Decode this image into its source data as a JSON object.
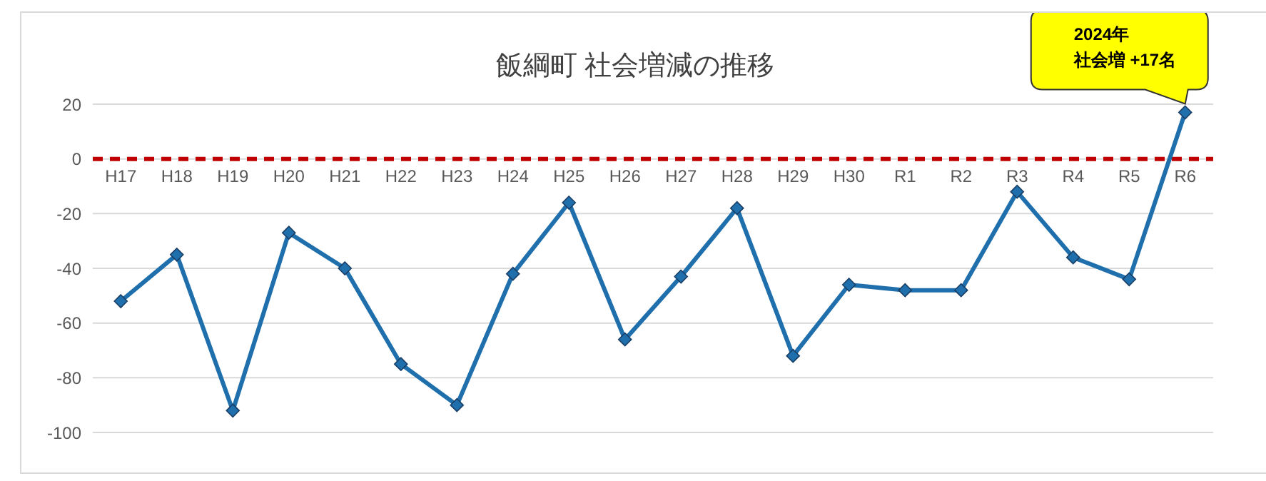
{
  "chart_data": {
    "type": "line",
    "title": "飯綱町  社会増減の推移",
    "categories": [
      "H17",
      "H18",
      "H19",
      "H20",
      "H21",
      "H22",
      "H23",
      "H24",
      "H25",
      "H26",
      "H27",
      "H28",
      "H29",
      "H30",
      "R1",
      "R2",
      "R3",
      "R4",
      "R5",
      "R6"
    ],
    "series": [
      {
        "color": "#1f6fad",
        "values": [
          -52,
          -35,
          -92,
          -27,
          -40,
          -75,
          -90,
          -42,
          -16,
          -66,
          -43,
          -18,
          -72,
          -46,
          -48,
          -48,
          -12,
          -36,
          -44,
          17
        ]
      }
    ],
    "ylim": [
      -100,
      20
    ],
    "yticks": [
      -100,
      -80,
      -60,
      -40,
      -20,
      0,
      20
    ],
    "grid": "y",
    "marker": "diamond",
    "line_style": "solid",
    "ref_lines": [
      {
        "axis": "y",
        "value": 0,
        "color": "#c00000",
        "line_style": "dashed"
      }
    ],
    "annotations": [
      "2024年",
      {
        "text": "社会増 +17名",
        "x": "R6",
        "y": 17
      }
    ]
  }
}
